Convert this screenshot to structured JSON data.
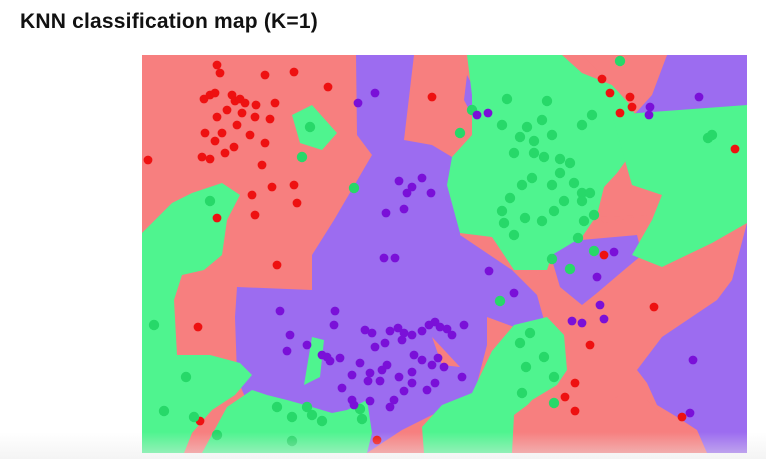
{
  "title": "KNN classification map (K=1)",
  "colors": {
    "red_region": "#f77f7f",
    "green_region": "#4ff48f",
    "purple_region": "#9c6cf0",
    "red_point": "#ee1111",
    "green_point": "#27d869",
    "purple_point": "#7a10d8"
  },
  "chart_data": {
    "type": "scatter",
    "title": "KNN classification map (K=1)",
    "xlabel": "",
    "ylabel": "",
    "xlim": [
      0,
      605
    ],
    "ylim": [
      0,
      398
    ],
    "grid": false,
    "legend": "none",
    "k": 1,
    "series": [
      {
        "class": "red",
        "points": [
          [
            75,
            10
          ],
          [
            78,
            18
          ],
          [
            152,
            17
          ],
          [
            123,
            20
          ],
          [
            186,
            32
          ],
          [
            62,
            44
          ],
          [
            68,
            40
          ],
          [
            73,
            38
          ],
          [
            90,
            40
          ],
          [
            93,
            46
          ],
          [
            98,
            44
          ],
          [
            103,
            48
          ],
          [
            114,
            50
          ],
          [
            133,
            48
          ],
          [
            85,
            55
          ],
          [
            75,
            62
          ],
          [
            100,
            58
          ],
          [
            113,
            62
          ],
          [
            128,
            64
          ],
          [
            95,
            70
          ],
          [
            80,
            78
          ],
          [
            63,
            78
          ],
          [
            108,
            80
          ],
          [
            73,
            86
          ],
          [
            92,
            92
          ],
          [
            123,
            88
          ],
          [
            83,
            98
          ],
          [
            60,
            102
          ],
          [
            68,
            104
          ],
          [
            120,
            110
          ],
          [
            6,
            105
          ],
          [
            130,
            132
          ],
          [
            110,
            140
          ],
          [
            152,
            130
          ],
          [
            155,
            148
          ],
          [
            113,
            160
          ],
          [
            75,
            163
          ],
          [
            290,
            42
          ],
          [
            460,
            24
          ],
          [
            468,
            38
          ],
          [
            488,
            42
          ],
          [
            490,
            52
          ],
          [
            478,
            58
          ],
          [
            593,
            94
          ],
          [
            462,
            200
          ],
          [
            512,
            252
          ],
          [
            135,
            210
          ],
          [
            56,
            272
          ],
          [
            448,
            290
          ],
          [
            433,
            328
          ],
          [
            423,
            342
          ],
          [
            433,
            356
          ],
          [
            58,
            366
          ],
          [
            540,
            362
          ],
          [
            235,
            385
          ]
        ]
      },
      {
        "class": "green",
        "points": [
          [
            478,
            6
          ],
          [
            168,
            72
          ],
          [
            160,
            102
          ],
          [
            68,
            146
          ],
          [
            212,
            133
          ],
          [
            566,
            83
          ],
          [
            570,
            80
          ],
          [
            365,
            44
          ],
          [
            405,
            46
          ],
          [
            330,
            55
          ],
          [
            360,
            70
          ],
          [
            385,
            72
          ],
          [
            400,
            65
          ],
          [
            378,
            82
          ],
          [
            392,
            86
          ],
          [
            410,
            80
          ],
          [
            450,
            60
          ],
          [
            440,
            70
          ],
          [
            372,
            98
          ],
          [
            392,
            98
          ],
          [
            402,
            102
          ],
          [
            418,
            104
          ],
          [
            428,
            108
          ],
          [
            418,
            118
          ],
          [
            410,
            130
          ],
          [
            390,
            123
          ],
          [
            380,
            130
          ],
          [
            368,
            143
          ],
          [
            360,
            156
          ],
          [
            362,
            168
          ],
          [
            372,
            180
          ],
          [
            383,
            163
          ],
          [
            400,
            166
          ],
          [
            412,
            156
          ],
          [
            422,
            146
          ],
          [
            432,
            128
          ],
          [
            440,
            138
          ],
          [
            448,
            138
          ],
          [
            442,
            166
          ],
          [
            436,
            183
          ],
          [
            452,
            196
          ],
          [
            358,
            246
          ],
          [
            318,
            78
          ],
          [
            410,
            204
          ],
          [
            428,
            214
          ],
          [
            440,
            146
          ],
          [
            452,
            160
          ],
          [
            12,
            270
          ],
          [
            44,
            322
          ],
          [
            22,
            356
          ],
          [
            52,
            362
          ],
          [
            135,
            352
          ],
          [
            150,
            362
          ],
          [
            170,
            360
          ],
          [
            180,
            366
          ],
          [
            150,
            386
          ],
          [
            75,
            380
          ],
          [
            388,
            278
          ],
          [
            378,
            288
          ],
          [
            384,
            312
          ],
          [
            402,
            302
          ],
          [
            412,
            322
          ],
          [
            380,
            338
          ],
          [
            412,
            348
          ],
          [
            218,
            354
          ],
          [
            220,
            364
          ],
          [
            165,
            352
          ]
        ]
      },
      {
        "class": "purple",
        "points": [
          [
            216,
            48
          ],
          [
            233,
            38
          ],
          [
            335,
            60
          ],
          [
            346,
            58
          ],
          [
            507,
            60
          ],
          [
            557,
            42
          ],
          [
            270,
            132
          ],
          [
            280,
            123
          ],
          [
            257,
            126
          ],
          [
            265,
            138
          ],
          [
            289,
            138
          ],
          [
            244,
            158
          ],
          [
            262,
            154
          ],
          [
            242,
            203
          ],
          [
            253,
            203
          ],
          [
            347,
            216
          ],
          [
            372,
            238
          ],
          [
            138,
            256
          ],
          [
            193,
            256
          ],
          [
            192,
            270
          ],
          [
            148,
            280
          ],
          [
            165,
            290
          ],
          [
            145,
            296
          ],
          [
            180,
            300
          ],
          [
            185,
            302
          ],
          [
            188,
            306
          ],
          [
            198,
            303
          ],
          [
            210,
            320
          ],
          [
            240,
            315
          ],
          [
            238,
            326
          ],
          [
            223,
            275
          ],
          [
            230,
            278
          ],
          [
            248,
            276
          ],
          [
            256,
            273
          ],
          [
            262,
            278
          ],
          [
            270,
            280
          ],
          [
            280,
            276
          ],
          [
            287,
            270
          ],
          [
            293,
            267
          ],
          [
            298,
            272
          ],
          [
            305,
            274
          ],
          [
            310,
            280
          ],
          [
            322,
            270
          ],
          [
            233,
            292
          ],
          [
            243,
            288
          ],
          [
            260,
            285
          ],
          [
            272,
            300
          ],
          [
            280,
            305
          ],
          [
            218,
            308
          ],
          [
            228,
            318
          ],
          [
            245,
            310
          ],
          [
            257,
            322
          ],
          [
            270,
            317
          ],
          [
            290,
            310
          ],
          [
            296,
            303
          ],
          [
            302,
            312
          ],
          [
            320,
            322
          ],
          [
            293,
            328
          ],
          [
            285,
            335
          ],
          [
            270,
            328
          ],
          [
            262,
            336
          ],
          [
            252,
            345
          ],
          [
            248,
            352
          ],
          [
            226,
            326
          ],
          [
            210,
            345
          ],
          [
            200,
            333
          ],
          [
            212,
            350
          ],
          [
            228,
            346
          ],
          [
            455,
            222
          ],
          [
            430,
            266
          ],
          [
            440,
            268
          ],
          [
            458,
            250
          ],
          [
            551,
            305
          ],
          [
            548,
            358
          ],
          [
            508,
            52
          ],
          [
            472,
            197
          ],
          [
            462,
            264
          ]
        ]
      }
    ]
  }
}
